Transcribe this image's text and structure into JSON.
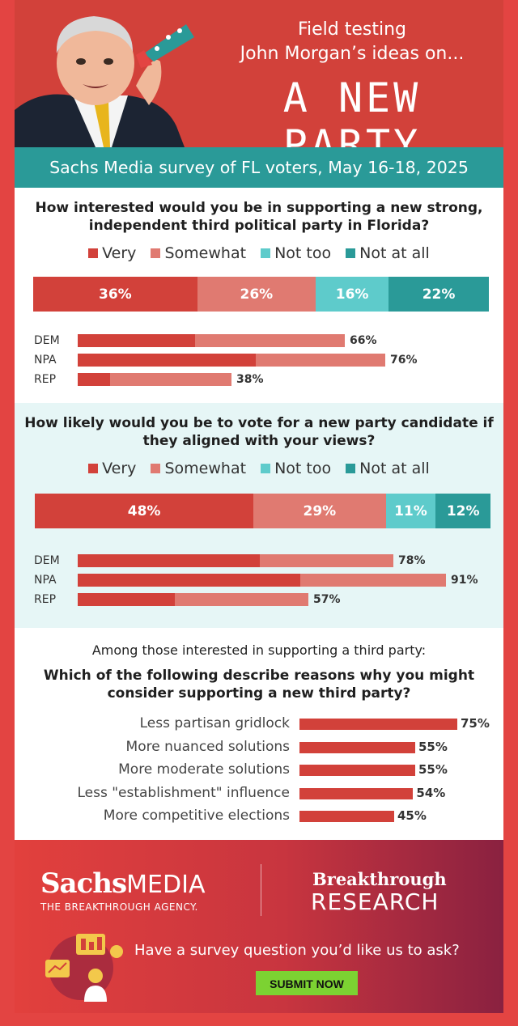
{
  "header": {
    "line1": "Field testing",
    "line2": "John Morgan’s ideas on...",
    "big": "A NEW PARTY"
  },
  "survey_label": "Sachs Media survey of FL voters, May 16-18, 2025",
  "legend": [
    {
      "label": "Very",
      "color": "#d2413a"
    },
    {
      "label": "Somewhat",
      "color": "#e07a71"
    },
    {
      "label": "Not too",
      "color": "#5ecbcb"
    },
    {
      "label": "Not at all",
      "color": "#2a9a98"
    }
  ],
  "intro": "Among those interested in supporting a third party:",
  "footer": {
    "sachs": "Sachs",
    "media": "MEDIA",
    "agency": "THE BREAKTHROUGH AGENCY.",
    "bt1": "Breakthrough",
    "bt2": "RESEARCH",
    "ask": "Have a survey question you’d like us to ask?",
    "submit": "SUBMIT NOW"
  },
  "chart_data": [
    {
      "type": "bar",
      "title": "How interested would you be in supporting a new strong, independent third political party in Florida?",
      "stacked_total": {
        "categories": [
          "Very",
          "Somewhat",
          "Not too",
          "Not at all"
        ],
        "values": [
          36,
          26,
          16,
          22
        ],
        "labels": [
          "36%",
          "26%",
          "16%",
          "22%"
        ]
      },
      "by_party": {
        "categories": [
          "DEM",
          "NPA",
          "REP"
        ],
        "series": [
          {
            "name": "Very",
            "values": [
              29,
              44,
              8
            ]
          },
          {
            "name": "Somewhat",
            "values": [
              37,
              32,
              30
            ]
          }
        ],
        "totals": [
          "66%",
          "76%",
          "38%"
        ]
      }
    },
    {
      "type": "bar",
      "title": "How likely would you be to vote for a new party candidate if they aligned with your views?",
      "stacked_total": {
        "categories": [
          "Very",
          "Somewhat",
          "Not too",
          "Not at all"
        ],
        "values": [
          48,
          29,
          11,
          12
        ],
        "labels": [
          "48%",
          "29%",
          "11%",
          "12%"
        ]
      },
      "by_party": {
        "categories": [
          "DEM",
          "NPA",
          "REP"
        ],
        "series": [
          {
            "name": "Very",
            "values": [
              45,
              55,
              24
            ]
          },
          {
            "name": "Somewhat",
            "values": [
              33,
              36,
              33
            ]
          }
        ],
        "totals": [
          "78%",
          "91%",
          "57%"
        ]
      }
    },
    {
      "type": "bar",
      "title": "Which of the following describe reasons why you might consider supporting a new third party?",
      "categories": [
        "Less partisan gridlock",
        "More nuanced solutions",
        "More moderate solutions",
        "Less \"establishment\" influence",
        "More competitive elections"
      ],
      "values": [
        75,
        55,
        55,
        54,
        45
      ],
      "labels": [
        "75%",
        "55%",
        "55%",
        "54%",
        "45%"
      ]
    }
  ]
}
